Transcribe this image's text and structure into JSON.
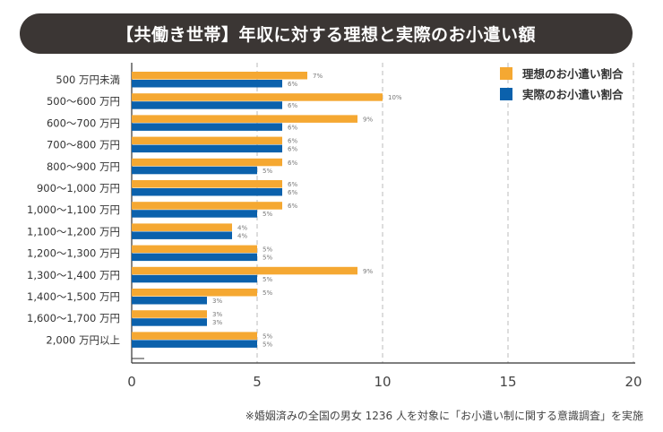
{
  "chart_data": {
    "type": "bar",
    "orientation": "horizontal",
    "title": "【共働き世帯】年収に対する理想と実際のお小遣い額",
    "categories": [
      "500 万円未満",
      "500〜600 万円",
      "600〜700 万円",
      "700〜800 万円",
      "800〜900 万円",
      "900〜1,000 万円",
      "1,000〜1,100 万円",
      "1,100〜1,200 万円",
      "1,200〜1,300 万円",
      "1,300〜1,400 万円",
      "1,400〜1,500 万円",
      "1,600〜1,700 万円",
      "2,000 万円以上"
    ],
    "series": [
      {
        "name": "理想のお小遣い割合",
        "color": "#f5a832",
        "values": [
          7,
          10,
          9,
          6,
          6,
          6,
          6,
          4,
          5,
          9,
          5,
          3,
          5
        ]
      },
      {
        "name": "実際のお小遣い割合",
        "color": "#0b61ac",
        "values": [
          6,
          6,
          6,
          6,
          5,
          6,
          5,
          4,
          5,
          5,
          3,
          3,
          5
        ]
      }
    ],
    "data_label_suffix": "%",
    "xlim": [
      0,
      20
    ],
    "xticks": [
      0,
      5,
      10,
      15,
      20
    ],
    "grid": "vertical dashed",
    "legend": "top-right",
    "footnote": "※婚姻済みの全国の男女 1236 人を対象に「お小遣い制に関する意識調査」を実施"
  }
}
